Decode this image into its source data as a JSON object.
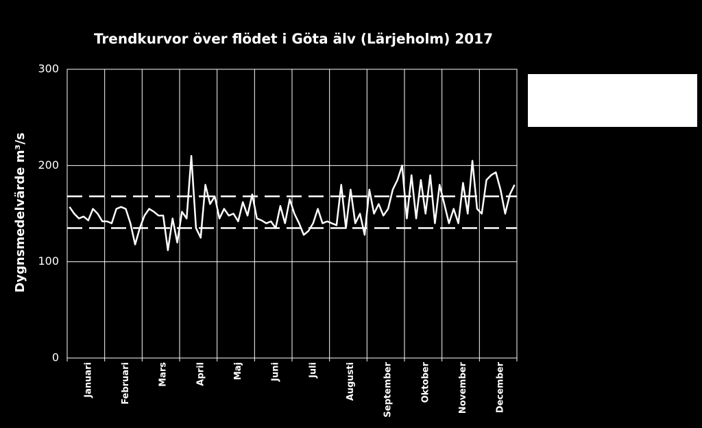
{
  "chart_data": {
    "type": "line",
    "title": "Trendkurvor över flödet i Göta älv (Lärjeholm) 2017",
    "ylabel": "Dygnsmedelvärde m³/s",
    "categories": [
      null,
      null,
      null,
      null,
      "Januari",
      null,
      null,
      null,
      null,
      null,
      null,
      null,
      "Februari",
      null,
      null,
      null,
      null,
      null,
      null,
      null,
      "Mars",
      null,
      null,
      null,
      null,
      null,
      null,
      null,
      "April",
      null,
      null,
      null,
      null,
      null,
      null,
      null,
      "Maj",
      null,
      null,
      null,
      null,
      null,
      null,
      null,
      "Juni",
      null,
      null,
      null,
      null,
      null,
      null,
      null,
      "Juli",
      null,
      null,
      null,
      null,
      null,
      null,
      null,
      "Augusti",
      null,
      null,
      null,
      null,
      null,
      null,
      null,
      "September",
      null,
      null,
      null,
      null,
      null,
      null,
      null,
      "Oktober",
      null,
      null,
      null,
      null,
      null,
      null,
      null,
      "November",
      null,
      null,
      null,
      null,
      null,
      null,
      null,
      "December",
      null,
      null,
      null
    ],
    "series": [
      {
        "color": "#ffffff",
        "values": [
          157,
          150,
          145,
          147,
          143,
          155,
          150,
          142,
          142,
          140,
          155,
          157,
          155,
          140,
          118,
          135,
          148,
          155,
          152,
          148,
          148,
          112,
          145,
          120,
          152,
          145,
          210,
          135,
          125,
          180,
          160,
          168,
          145,
          155,
          148,
          150,
          142,
          162,
          148,
          170,
          145,
          143,
          140,
          142,
          135,
          158,
          140,
          165,
          150,
          140,
          128,
          132,
          140,
          155,
          140,
          142,
          140,
          138,
          180,
          135,
          175,
          140,
          150,
          128,
          175,
          150,
          160,
          148,
          155,
          175,
          185,
          200,
          145,
          190,
          145,
          185,
          150,
          190,
          140,
          180,
          160,
          140,
          155,
          140,
          182,
          150,
          205,
          155,
          150,
          185,
          190,
          193,
          175,
          150,
          170,
          180
        ]
      }
    ],
    "reference_lines": [
      168,
      135
    ],
    "ylim": [
      0,
      300
    ],
    "yticks": [
      0,
      100,
      200,
      300
    ],
    "grid": true
  }
}
